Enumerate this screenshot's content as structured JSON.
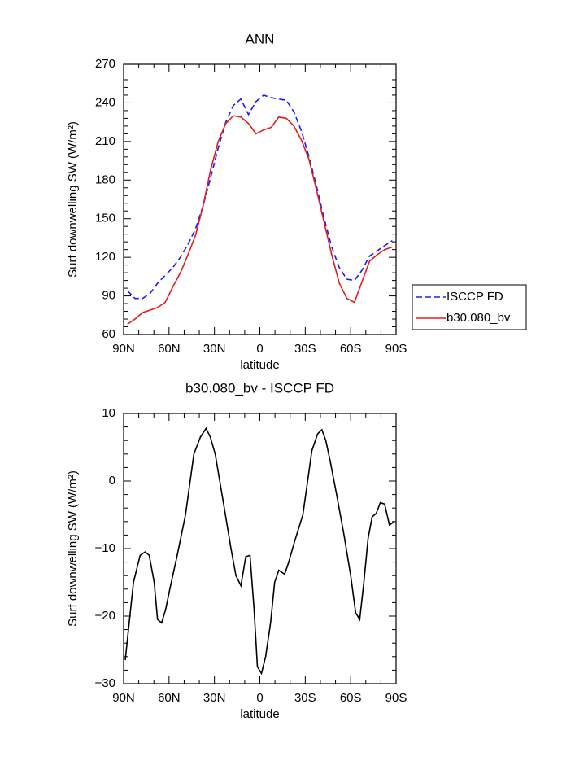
{
  "chart_data": [
    {
      "type": "line",
      "title": "ANN",
      "xlabel": "latitude",
      "ylabel": "Surf downwelling SW (W/m²)",
      "xlim": [
        90,
        -90
      ],
      "ylim": [
        60,
        270
      ],
      "xticks": [
        {
          "value": 90,
          "label": "90N"
        },
        {
          "value": 60,
          "label": "60N"
        },
        {
          "value": 30,
          "label": "30N"
        },
        0,
        {
          "value": -30,
          "label": "30S"
        },
        {
          "value": -60,
          "label": "60S"
        },
        {
          "value": -90,
          "label": "90S"
        }
      ],
      "yticks": [
        60,
        90,
        120,
        150,
        180,
        210,
        240,
        270
      ],
      "legend": "right",
      "x": [
        87.5,
        82.5,
        77.5,
        72.5,
        67.5,
        62.5,
        57.5,
        52.5,
        47.5,
        42.5,
        37.5,
        32.5,
        27.5,
        22.5,
        17.5,
        12.5,
        7.5,
        2.5,
        -2.5,
        -7.5,
        -12.5,
        -17.5,
        -22.5,
        -27.5,
        -32.5,
        -37.5,
        -42.5,
        -47.5,
        -52.5,
        -57.5,
        -62.5,
        -67.5,
        -72.5,
        -77.5,
        -82.5,
        -87.5
      ],
      "series": [
        {
          "name": "ISCCP FD",
          "color": "#1a1aff",
          "dash": true,
          "values": [
            94,
            88,
            88,
            92,
            100,
            106,
            112,
            120,
            130,
            142,
            160,
            182,
            205,
            225,
            238,
            243,
            231,
            241,
            246,
            244,
            243,
            242,
            233,
            218,
            198,
            175,
            150,
            128,
            112,
            103,
            102,
            110,
            121,
            125,
            129,
            133
          ]
        },
        {
          "name": "b30.080_bv",
          "color": "#e81a1a",
          "dash": false,
          "values": [
            68,
            72,
            77,
            79,
            81,
            85,
            97,
            108,
            122,
            137,
            160,
            188,
            210,
            224,
            230,
            229,
            224,
            216,
            219,
            221,
            229,
            228,
            222,
            211,
            196,
            172,
            147,
            122,
            100,
            88,
            85,
            101,
            117,
            122,
            126,
            128
          ]
        }
      ]
    },
    {
      "type": "line",
      "title": "b30.080_bv - ISCCP FD",
      "xlabel": "latitude",
      "ylabel": "Surf downwelling SW (W/m²)",
      "xlim": [
        90,
        -90
      ],
      "ylim": [
        -30,
        10
      ],
      "xticks": [
        {
          "value": 90,
          "label": "90N"
        },
        {
          "value": 60,
          "label": "60N"
        },
        {
          "value": 30,
          "label": "30N"
        },
        0,
        {
          "value": -30,
          "label": "30S"
        },
        {
          "value": -60,
          "label": "60S"
        },
        {
          "value": -90,
          "label": "90S"
        }
      ],
      "yticks": [
        {
          "value": -30,
          "label": "−30"
        },
        {
          "value": -20,
          "label": "−20"
        },
        {
          "value": -10,
          "label": "−10"
        },
        0,
        10
      ],
      "x": [
        88.9,
        83.5,
        79.1,
        75.8,
        73.1,
        69.8,
        67.6,
        64.9,
        62.2,
        59.5,
        54.6,
        49.1,
        43.6,
        39.3,
        35.5,
        32.7,
        29.5,
        23.5,
        19.1,
        15.8,
        12.5,
        9.3,
        6.5,
        3.8,
        1.6,
        -1.1,
        -3.8,
        -7.1,
        -9.8,
        -12.5,
        -16.4,
        -19.1,
        -22.9,
        -28.4,
        -34.4,
        -38.2,
        -41.0,
        -43.6,
        -46.4,
        -50.7,
        -55.6,
        -60.0,
        -63.3,
        -66.0,
        -68.7,
        -71.5,
        -74.2,
        -76.9,
        -79.6,
        -82.4,
        -85.6,
        -88.4
      ],
      "series": [
        {
          "color": "#000000",
          "values": [
            -26.5,
            -15,
            -11,
            -10.5,
            -11,
            -15,
            -20.5,
            -21,
            -19,
            -16,
            -11,
            -5,
            4,
            6.5,
            7.8,
            6.5,
            4,
            -4,
            -10,
            -14,
            -15.5,
            -11.2,
            -11,
            -19,
            -27.5,
            -28.5,
            -26,
            -21,
            -15,
            -13.2,
            -13.8,
            -12,
            -9,
            -5,
            4.5,
            7,
            7.6,
            6,
            3,
            -2,
            -8,
            -14,
            -19.5,
            -20.5,
            -15,
            -8.5,
            -5.3,
            -4.8,
            -3.2,
            -3.4,
            -6.5,
            -6.1
          ]
        }
      ]
    }
  ]
}
